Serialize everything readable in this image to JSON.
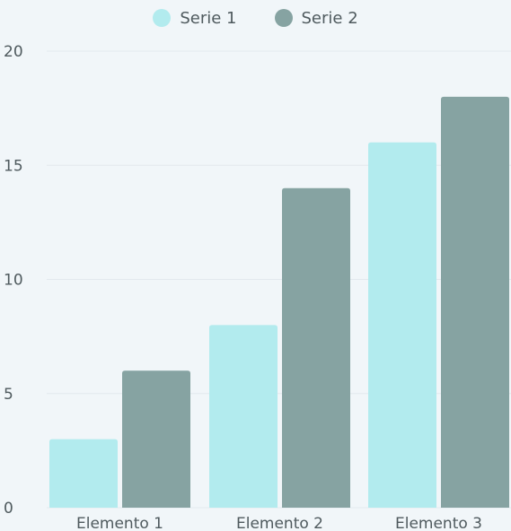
{
  "chart_data": {
    "type": "bar",
    "title": "",
    "xlabel": "",
    "ylabel": "",
    "categories": [
      "Elemento 1",
      "Elemento 2",
      "Elemento 3"
    ],
    "series": [
      {
        "name": "Serie 1",
        "color": "#b2ebee",
        "values": [
          3,
          8,
          16
        ]
      },
      {
        "name": "Serie 2",
        "color": "#86a3a2",
        "values": [
          6,
          14,
          18
        ]
      }
    ],
    "ylim": [
      0,
      20
    ],
    "yticks": [
      0,
      5,
      10,
      15,
      20
    ],
    "ytick_labels": [
      "0",
      "5",
      "10",
      "15",
      "20"
    ],
    "grid": true,
    "legend_position": "top-center"
  }
}
